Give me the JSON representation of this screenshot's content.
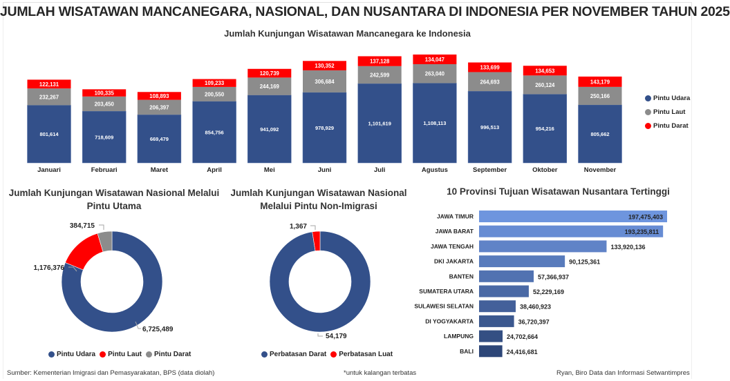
{
  "header": {
    "title": "JUMLAH WISATAWAN MANCANEGARA, NASIONAL, DAN NUSANTARA DI INDONESIA PER NOVEMBER TAHUN 2025"
  },
  "colors": {
    "udara": "#33508A",
    "laut": "#8C8C8C",
    "darat": "#FF0000",
    "province_light": "#6E95DE",
    "province_dark": "#2D4678"
  },
  "chart_data": [
    {
      "type": "bar",
      "stacked": true,
      "title": "Jumlah Kunjungan Wisatawan Mancanegara ke Indonesia",
      "xlabel": "",
      "ylabel": "",
      "grid": false,
      "legend_position": "right",
      "categories": [
        "Januari",
        "Februari",
        "Maret",
        "April",
        "Mei",
        "Juni",
        "Juli",
        "Agustus",
        "September",
        "Oktober",
        "November"
      ],
      "series": [
        {
          "name": "Pintu Udara",
          "values": [
            801614,
            718609,
            669479,
            854756,
            941092,
            978929,
            1101619,
            1108113,
            996513,
            954216,
            805662
          ],
          "labels": [
            "801,614",
            "718,609",
            "669,479",
            "854,756",
            "941,092",
            "978,929",
            "1,101,619",
            "1,108,113",
            "996,513",
            "954,216",
            "805,662"
          ]
        },
        {
          "name": "Pintu Laut",
          "values": [
            232267,
            203450,
            206397,
            200550,
            244169,
            306684,
            242599,
            263040,
            264693,
            260124,
            250166
          ],
          "labels": [
            "232,267",
            "203,450",
            "206,397",
            "200,550",
            "244,169",
            "306,684",
            "242,599",
            "263,040",
            "264,693",
            "260,124",
            "250,166"
          ]
        },
        {
          "name": "Pintu Darat",
          "values": [
            122131,
            100335,
            108893,
            109233,
            120739,
            130352,
            137128,
            134047,
            133699,
            134653,
            143179
          ],
          "labels": [
            "122,131",
            "100,335",
            "108,893",
            "109,233",
            "120,739",
            "130,352",
            "137,128",
            "134,047",
            "133,699",
            "134,653",
            "143,179"
          ]
        }
      ]
    },
    {
      "type": "pie",
      "donut": true,
      "title": "Jumlah Kunjungan Wisatawan Nasional Melalui Pintu Utama",
      "legend_position": "bottom",
      "slices": [
        {
          "name": "Pintu Udara",
          "value": 6725489,
          "label": "6,725,489"
        },
        {
          "name": "Pintu Laut",
          "value": 1176376,
          "label": "1,176,376"
        },
        {
          "name": "Pintu Darat",
          "value": 384715,
          "label": "384,715"
        }
      ]
    },
    {
      "type": "pie",
      "donut": true,
      "title": "Jumlah Kunjungan Wisatawan Nasional Melalui Pintu Non-Imigrasi",
      "legend_position": "bottom",
      "slices": [
        {
          "name": "Perbatasan Darat",
          "value": 54179,
          "label": "54,179"
        },
        {
          "name": "Perbatasan Luat",
          "value": 1367,
          "label": "1,367"
        }
      ]
    },
    {
      "type": "bar",
      "orientation": "horizontal",
      "title": "10 Provinsi Tujuan Wisatawan Nusantara Tertinggi",
      "xlabel": "",
      "ylabel": "",
      "grid": false,
      "categories": [
        "JAWA TIMUR",
        "JAWA BARAT",
        "JAWA TENGAH",
        "DKI JAKARTA",
        "BANTEN",
        "SUMATERA UTARA",
        "SULAWESI SELATAN",
        "DI YOGYAKARTA",
        "LAMPUNG",
        "BALI"
      ],
      "values": [
        197475403,
        193235811,
        133920136,
        90125361,
        57366937,
        52229169,
        38460923,
        36720397,
        24702664,
        24416681
      ],
      "labels": [
        "197,475,403",
        "193,235,811",
        "133,920,136",
        "90,125,361",
        "57,366,937",
        "52,229,169",
        "38,460,923",
        "36,720,397",
        "24,702,664",
        "24,416,681"
      ]
    }
  ],
  "footer": {
    "source": "Sumber: Kementerian Imigrasi dan Pemasyarakatan, BPS (data diolah)",
    "note": "*untuk kalangan terbatas",
    "credit": "Ryan, Biro Data dan Informasi Setwantimpres"
  }
}
